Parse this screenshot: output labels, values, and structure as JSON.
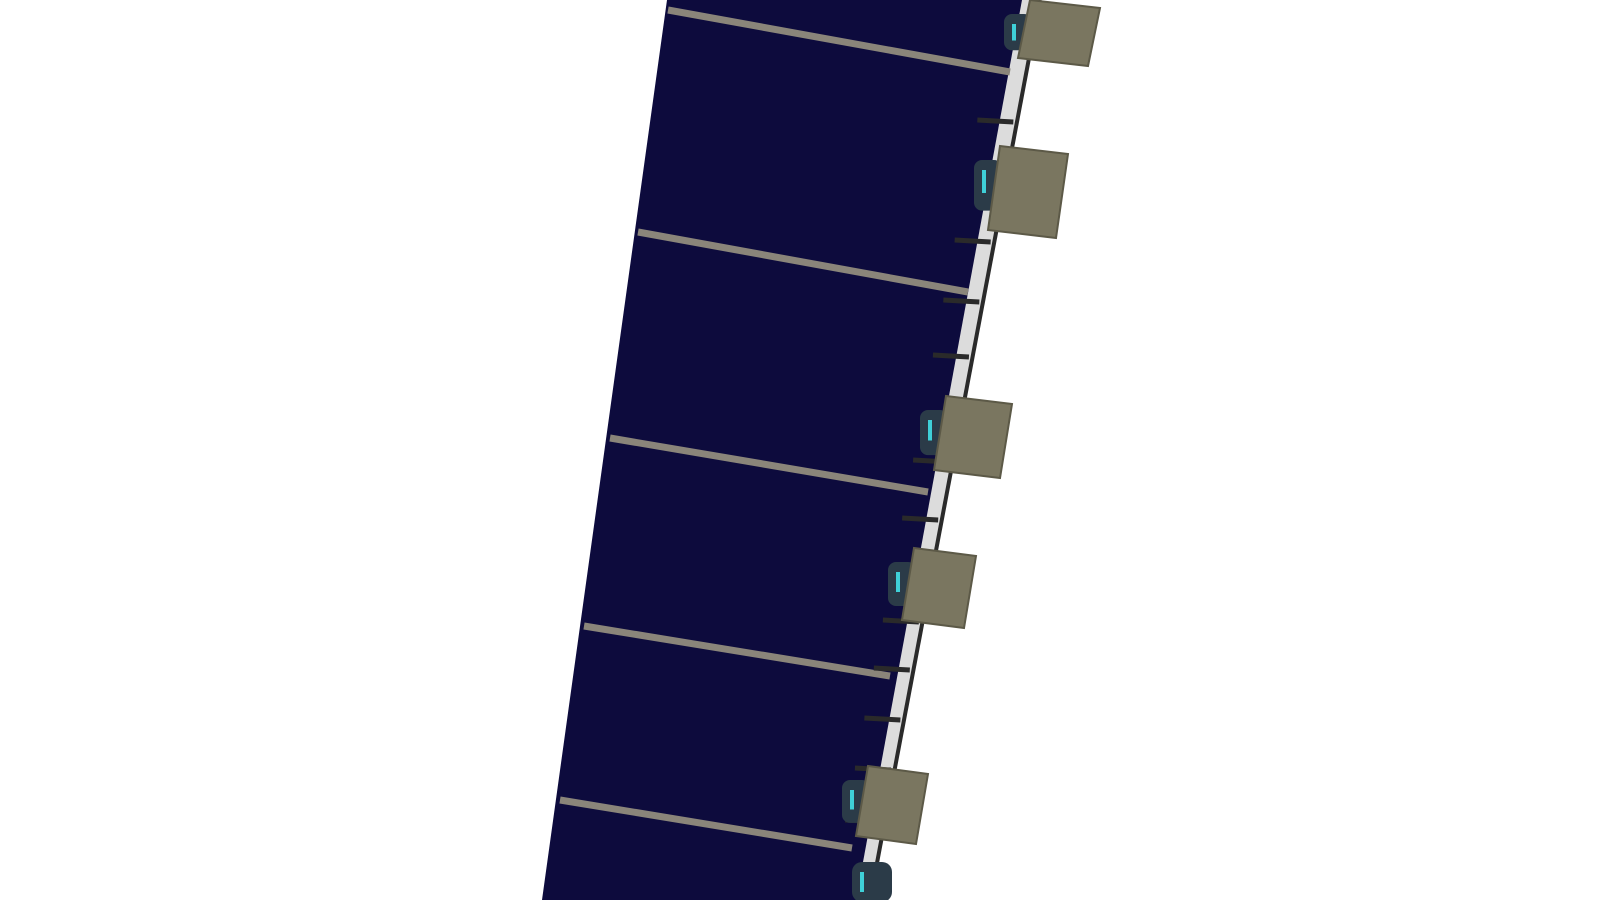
{
  "scene": {
    "subject": "solar-panel-array-with-junction-boxes",
    "colors": {
      "background": "#ffffff",
      "panel": "#0d0b3d",
      "panel_edge": "#121050",
      "seam": "#8a857a",
      "rail": "#d9d9d9",
      "rail_edge": "#2a2a2a",
      "box": "#7a7660",
      "box_edge": "#5c5947",
      "connector": "#2b3b48",
      "connector_glow": "#3fd0d8"
    },
    "panel_count": 6,
    "junction_box_count": 6
  }
}
